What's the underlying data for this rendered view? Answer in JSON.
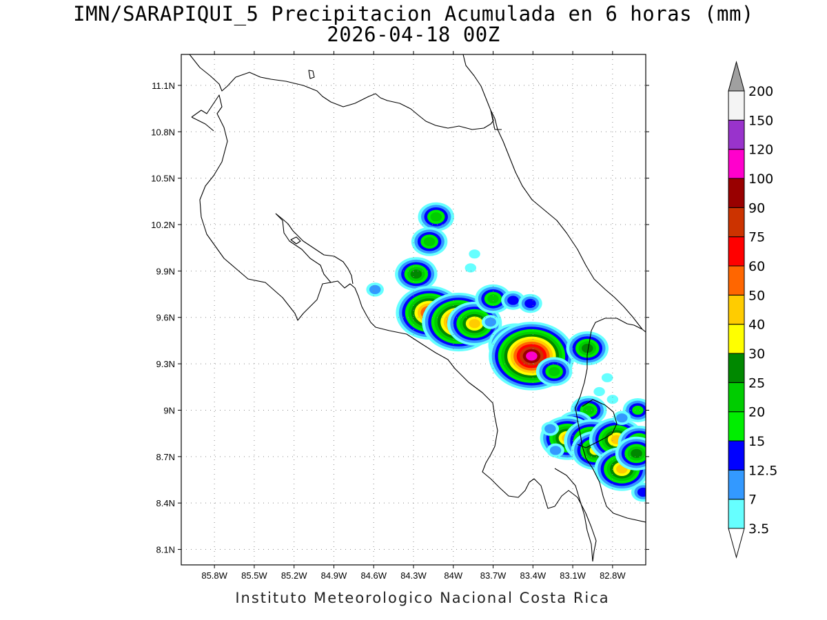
{
  "title": {
    "line1": "IMN/SARAPIQUI_5 Precipitacion Acumulada en 6 horas (mm)",
    "line2": "2026-04-18 00Z"
  },
  "credit": "Instituto Meteorologico Nacional Costa Rica",
  "map": {
    "lon_range": [
      -86.05,
      -82.55
    ],
    "lat_range": [
      8.0,
      11.3
    ],
    "lon_ticks": [
      "85.8W",
      "85.5W",
      "85.2W",
      "84.9W",
      "84.6W",
      "84.3W",
      "84W",
      "83.7W",
      "83.4W",
      "83.1W",
      "82.8W"
    ],
    "lon_values": [
      -85.8,
      -85.5,
      -85.2,
      -84.9,
      -84.6,
      -84.3,
      -84.0,
      -83.7,
      -83.4,
      -83.1,
      -82.8
    ],
    "lat_ticks": [
      "11.1N",
      "10.8N",
      "10.5N",
      "10.2N",
      "9.9N",
      "9.6N",
      "9.3N",
      "9N",
      "8.7N",
      "8.4N",
      "8.1N"
    ],
    "lat_values": [
      11.1,
      10.8,
      10.5,
      10.2,
      9.9,
      9.6,
      9.3,
      9.0,
      8.7,
      8.4,
      8.1
    ],
    "grid": "dotted"
  },
  "colorbar": {
    "labels": [
      "3.5",
      "7",
      "12.5",
      "15",
      "20",
      "25",
      "30",
      "40",
      "50",
      "60",
      "75",
      "90",
      "100",
      "120",
      "150",
      "200"
    ],
    "colors": [
      "#66ffff",
      "#3399ff",
      "#0000ff",
      "#00ee00",
      "#00cc00",
      "#008800",
      "#ffff00",
      "#ffcc00",
      "#ff6600",
      "#ff0000",
      "#cc3300",
      "#990000",
      "#ff00cc",
      "#9933cc",
      "#f4f4f4",
      "#a0a0a0"
    ]
  },
  "precip_cells": [
    {
      "lon": -84.13,
      "lat": 10.25,
      "peak": 20
    },
    {
      "lon": -84.18,
      "lat": 10.09,
      "peak": 20
    },
    {
      "lon": -84.28,
      "lat": 9.88,
      "peak": 25
    },
    {
      "lon": -84.59,
      "lat": 9.78,
      "peak": 7
    },
    {
      "lon": -84.18,
      "lat": 9.63,
      "peak": 60
    },
    {
      "lon": -83.96,
      "lat": 9.57,
      "peak": 75
    },
    {
      "lon": -83.84,
      "lat": 9.56,
      "peak": 40
    },
    {
      "lon": -83.7,
      "lat": 9.72,
      "peak": 20
    },
    {
      "lon": -83.55,
      "lat": 9.71,
      "peak": 12.5
    },
    {
      "lon": -83.42,
      "lat": 9.69,
      "peak": 12.5
    },
    {
      "lon": -83.53,
      "lat": 9.42,
      "peak": 40
    },
    {
      "lon": -83.41,
      "lat": 9.35,
      "peak": 100
    },
    {
      "lon": -83.24,
      "lat": 9.25,
      "peak": 20
    },
    {
      "lon": -82.99,
      "lat": 9.4,
      "peak": 25
    },
    {
      "lon": -82.98,
      "lat": 9.0,
      "peak": 20
    },
    {
      "lon": -83.08,
      "lat": 8.9,
      "peak": 20
    },
    {
      "lon": -83.14,
      "lat": 8.82,
      "peak": 40
    },
    {
      "lon": -82.96,
      "lat": 8.8,
      "peak": 40
    },
    {
      "lon": -82.93,
      "lat": 8.74,
      "peak": 30
    },
    {
      "lon": -82.77,
      "lat": 8.81,
      "peak": 40
    },
    {
      "lon": -82.73,
      "lat": 8.62,
      "peak": 40
    },
    {
      "lon": -82.6,
      "lat": 8.79,
      "peak": 25
    },
    {
      "lon": -82.61,
      "lat": 9.0,
      "peak": 15
    },
    {
      "lon": -82.62,
      "lat": 8.72,
      "peak": 25
    },
    {
      "lon": -82.57,
      "lat": 8.47,
      "peak": 12.5
    },
    {
      "lon": -82.73,
      "lat": 8.95,
      "peak": 7
    },
    {
      "lon": -83.84,
      "lat": 10.01,
      "peak": 3.5
    },
    {
      "lon": -83.87,
      "lat": 9.92,
      "peak": 3.5
    },
    {
      "lon": -83.72,
      "lat": 9.57,
      "peak": 7
    },
    {
      "lon": -83.27,
      "lat": 8.88,
      "peak": 7
    },
    {
      "lon": -83.23,
      "lat": 8.74,
      "peak": 7
    },
    {
      "lon": -82.84,
      "lat": 9.21,
      "peak": 3.5
    },
    {
      "lon": -82.8,
      "lat": 9.07,
      "peak": 3.5
    },
    {
      "lon": -82.9,
      "lat": 9.12,
      "peak": 3.5
    }
  ]
}
